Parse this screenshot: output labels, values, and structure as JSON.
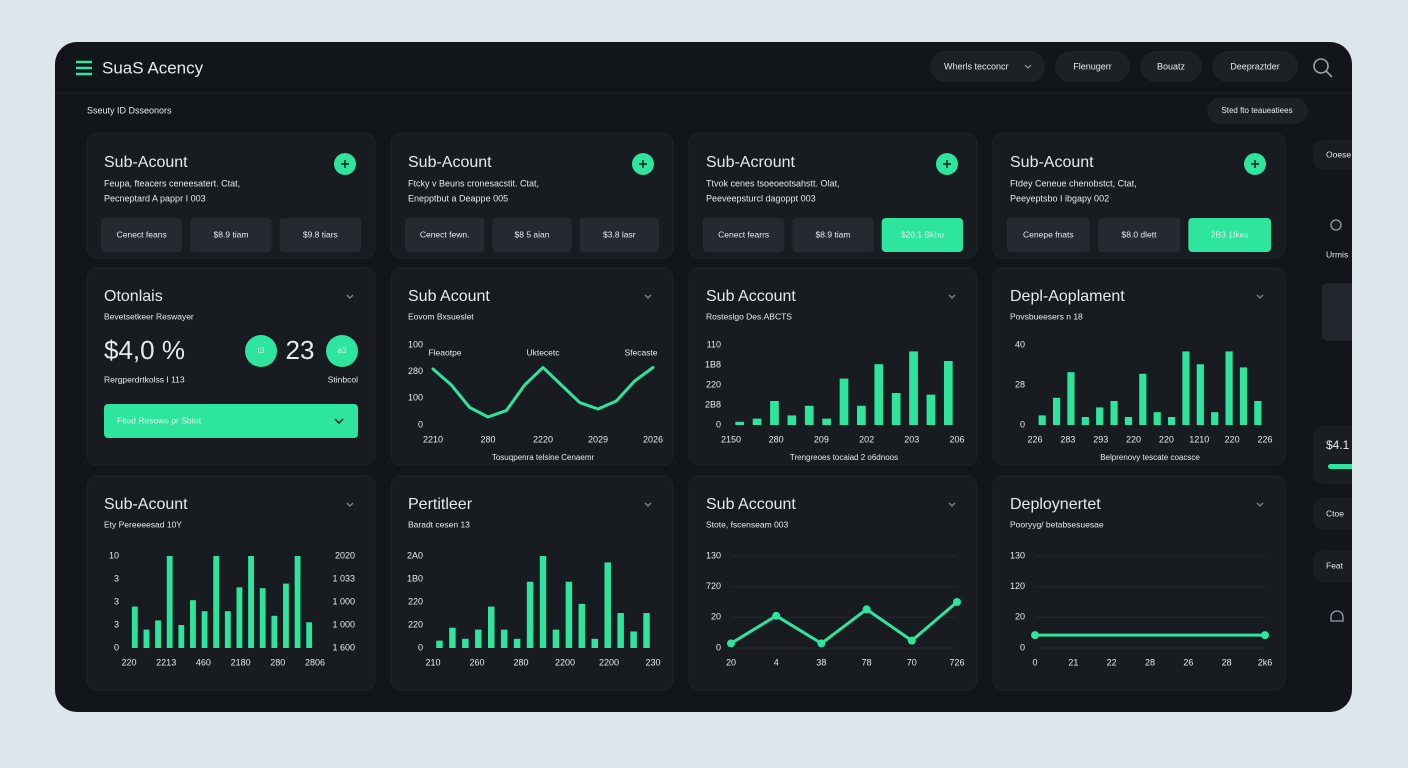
{
  "app": {
    "title": "SuaS Acency",
    "nav": [
      "Wherls tecconcr",
      "Flenugerr",
      "Bouatz",
      "Deepraztder"
    ],
    "subtitle": "Sseuty ID Dsseonors",
    "action": "Sted fto teaueatiees"
  },
  "account_cards": [
    {
      "title": "Sub-Acount",
      "line1": "Feupa, fteacers ceneesatert. Ctat,",
      "line2": "Pecneptard  A pappr I 003",
      "buttons": [
        {
          "label": "Cenect feans",
          "active": false
        },
        {
          "label": "$8.9 tiam",
          "active": false
        },
        {
          "label": "$9.8 tiars",
          "active": false
        }
      ]
    },
    {
      "title": "Sub-Acount",
      "line1": "Ftcky v Beuns cronesacstit. Ctat,",
      "line2": "Enepptbut a Deappe 005",
      "buttons": [
        {
          "label": "Cenect fewn.",
          "active": false
        },
        {
          "label": "$8 5 aian",
          "active": false
        },
        {
          "label": "$3.8 lasr",
          "active": false
        }
      ]
    },
    {
      "title": "Sub-Acrount",
      "line1": "Ttvok cenes tsoeoeotsahstt. Olat,",
      "line2": "Peeveepsturcl dagoppt 003",
      "buttons": [
        {
          "label": "Cenect fearrs",
          "active": false
        },
        {
          "label": "$8.9 tiam",
          "active": false
        },
        {
          "label": "$20.1 Bkhu",
          "active": true
        }
      ]
    },
    {
      "title": "Sub-Acount",
      "line1": "Ftdey Ceneue chenobstct, Ctat,",
      "line2": "Peeyeptsbo I ibgapy 002",
      "buttons": [
        {
          "label": "Cenepe fnats",
          "active": false
        },
        {
          "label": "$8.0 dlett",
          "active": false
        },
        {
          "label": "2B3 1fkes",
          "active": true
        }
      ]
    }
  ],
  "summary": {
    "title": "Otonlais",
    "subtitle": "Bevetsetkeer Reswayer",
    "big_value": "$4,0 %",
    "badge1": "t3",
    "count": 23,
    "badge2": "a3",
    "note": "Rergperdrtkolss I 113",
    "note_right": "Stinbcol",
    "dropdown": "Fited Resowe pr Sbtot"
  },
  "charts": [
    {
      "type": "line",
      "title": "Sub Acount",
      "subtitle": "Eovom Bxsueslet",
      "ylim": [
        0,
        100
      ],
      "ylabels": [
        "100",
        "280",
        "100",
        "0"
      ],
      "xlabels": [
        "2210",
        "280",
        "2220",
        "2029",
        "2026"
      ],
      "series_labels": [
        "Fleaotpe",
        "Uktecetc",
        "Sfecaste"
      ],
      "footer": "Tosuqpenra telsine Cenaemr",
      "color": "#2ee59d",
      "markers": false,
      "values": [
        70,
        50,
        22,
        10,
        18,
        50,
        72,
        50,
        28,
        20,
        30,
        55,
        72
      ]
    },
    {
      "type": "bar",
      "title": "Sub Account",
      "subtitle": "Rosteslgo Des.ABCTS",
      "ylim": [
        0,
        100
      ],
      "ylabels": [
        "110",
        "1B8",
        "220",
        "2B8",
        "0"
      ],
      "xlabels": [
        "2150",
        "280",
        "209",
        "202",
        "203",
        "206"
      ],
      "footer": "Trengreoes tocaiad 2 o6dnoos",
      "color": "#2ee59d",
      "values": [
        4,
        8,
        30,
        12,
        24,
        8,
        58,
        24,
        76,
        40,
        92,
        38,
        80
      ]
    },
    {
      "type": "bar",
      "title": "Depl-Aoplament",
      "subtitle": "Povsbueesers n 18",
      "ylim": [
        0,
        100
      ],
      "ylabels": [
        "40",
        "28",
        "0"
      ],
      "xlabels": [
        "226",
        "283",
        "293",
        "220",
        "220",
        "1210",
        "220",
        "226"
      ],
      "footer": "Belprenovy tescate coacsce",
      "color": "#2ee59d",
      "values": [
        12,
        34,
        66,
        10,
        22,
        30,
        10,
        64,
        16,
        10,
        92,
        76,
        16,
        92,
        72,
        30
      ]
    },
    {
      "type": "bar",
      "title": "Sub-Acount",
      "subtitle": "Ety Pereeeesad 10Y",
      "ylim": [
        0,
        100
      ],
      "ylabels": [
        "10",
        "3",
        "3",
        "3",
        "0"
      ],
      "ylabels2": [
        "2020",
        "1 033",
        "1 000",
        "1 000",
        "1 600"
      ],
      "xlabels": [
        "220",
        "2213",
        "460",
        "2180",
        "280",
        "2806"
      ],
      "color": "#2ee59d",
      "values": [
        45,
        20,
        30,
        100,
        25,
        52,
        40,
        100,
        40,
        66,
        100,
        65,
        35,
        70,
        100,
        28
      ]
    },
    {
      "type": "bar",
      "title": "Pertitleer",
      "subtitle": "Baradt cesen 13",
      "ylim": [
        0,
        100
      ],
      "ylabels": [
        "2A0",
        "1B0",
        "220",
        "220",
        "0"
      ],
      "xlabels": [
        "210",
        "260",
        "280",
        "2200",
        "2200",
        "230"
      ],
      "color": "#2ee59d",
      "values": [
        8,
        22,
        10,
        20,
        45,
        20,
        10,
        72,
        100,
        20,
        72,
        48,
        10,
        93,
        38,
        18,
        38
      ]
    },
    {
      "type": "line",
      "title": "Sub Account",
      "subtitle": "Stote, fscenseam 003",
      "ylim": [
        0,
        100
      ],
      "ylabels": [
        "130",
        "720",
        "20",
        "0"
      ],
      "xlabels": [
        "20",
        "4",
        "38",
        "78",
        "70",
        "726"
      ],
      "color": "#2ee59d",
      "markers": true,
      "grid": true,
      "values": [
        5,
        35,
        5,
        42,
        8,
        50
      ]
    },
    {
      "type": "line",
      "title": "Deploynertet",
      "subtitle": "Pooryyg/ betabsesuesae",
      "ylim": [
        0,
        100
      ],
      "ylabels": [
        "130",
        "120",
        "20",
        "0"
      ],
      "xlabels": [
        "0",
        "21",
        "22",
        "28",
        "26",
        "28",
        "2k6"
      ],
      "color": "#2ee59d",
      "markers": true,
      "grid": true,
      "values": [
        14,
        14
      ]
    }
  ],
  "sidebar": [
    "Ooese",
    "Urmis",
    "$4.1",
    "Ctoe",
    "Feat"
  ]
}
